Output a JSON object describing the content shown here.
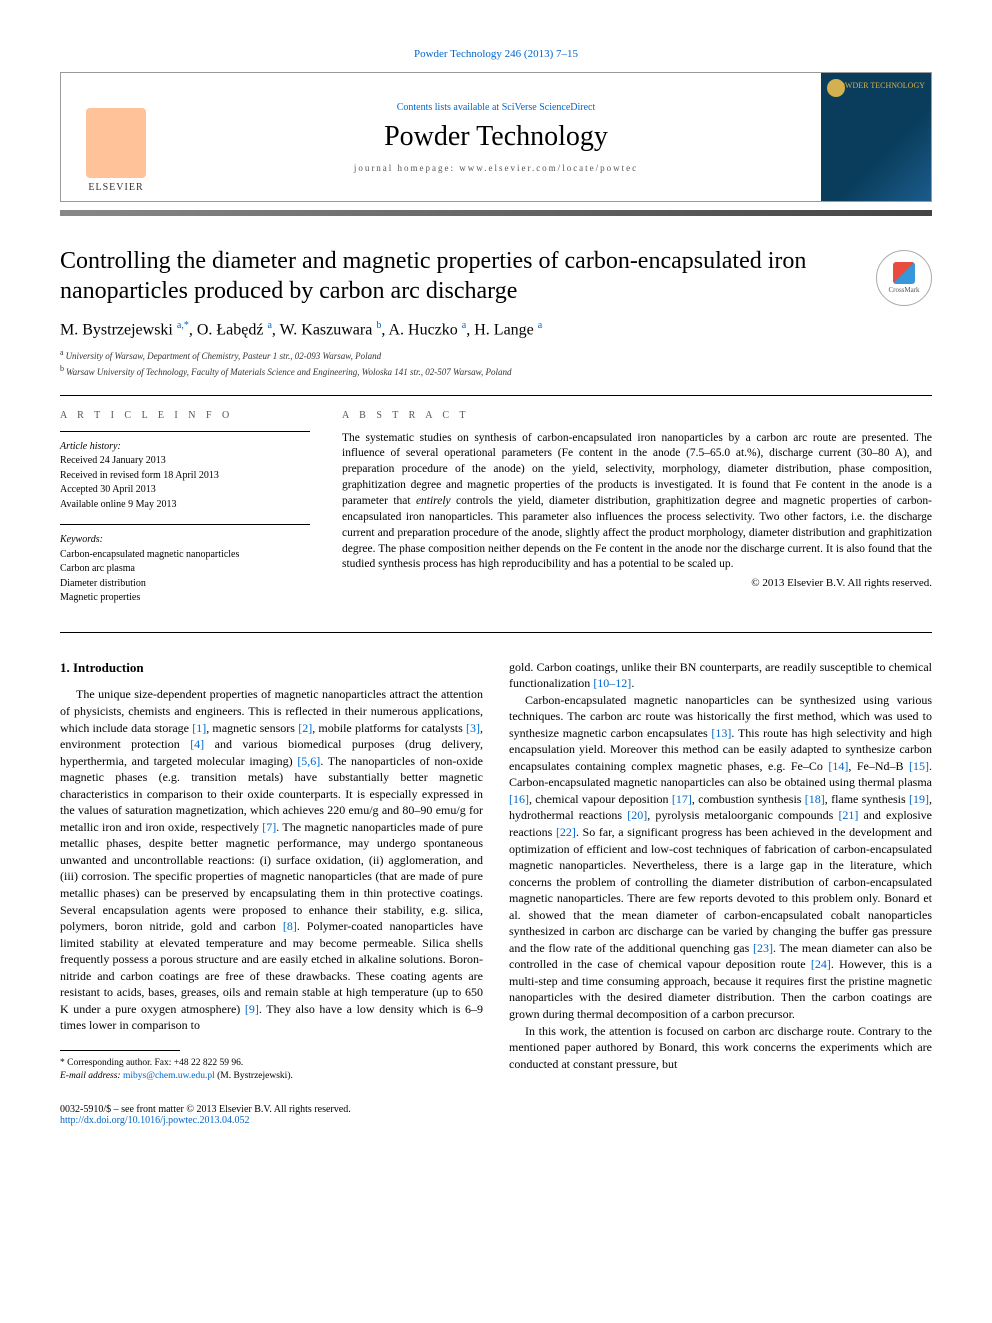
{
  "top_citation": "Powder Technology 246 (2013) 7–15",
  "masthead": {
    "contents_prefix": "Contents lists available at ",
    "contents_link": "SciVerse ScienceDirect",
    "journal": "Powder Technology",
    "homepage_label": "journal homepage: www.elsevier.com/locate/powtec",
    "publisher": "ELSEVIER",
    "cover_text": "POWDER TECHNOLOGY"
  },
  "crossmark_label": "CrossMark",
  "title": "Controlling the diameter and magnetic properties of carbon-encapsulated iron nanoparticles produced by carbon arc discharge",
  "authors_html": "M. Bystrzejewski |a,*|, O. Łabędź |a|, W. Kaszuwara |b|, A. Huczko |a|, H. Lange |a|",
  "affiliations": [
    {
      "sup": "a",
      "text": "University of Warsaw, Department of Chemistry, Pasteur 1 str., 02-093 Warsaw, Poland"
    },
    {
      "sup": "b",
      "text": "Warsaw University of Technology, Faculty of Materials Science and Engineering, Woloska 141 str., 02-507 Warsaw, Poland"
    }
  ],
  "article_info_heading": "A R T I C L E   I N F O",
  "abstract_heading": "A B S T R A C T",
  "history": {
    "label": "Article history:",
    "lines": [
      "Received 24 January 2013",
      "Received in revised form 18 April 2013",
      "Accepted 30 April 2013",
      "Available online 9 May 2013"
    ]
  },
  "keywords": {
    "label": "Keywords:",
    "items": [
      "Carbon-encapsulated magnetic nanoparticles",
      "Carbon arc plasma",
      "Diameter distribution",
      "Magnetic properties"
    ]
  },
  "abstract": "The systematic studies on synthesis of carbon-encapsulated iron nanoparticles by a carbon arc route are presented. The influence of several operational parameters (Fe content in the anode (7.5–65.0 at.%), discharge current (30–80 A), and preparation procedure of the anode) on the yield, selectivity, morphology, diameter distribution, phase composition, graphitization degree and magnetic properties of the products is investigated. It is found that Fe content in the anode is a parameter that entirely controls the yield, diameter distribution, graphitization degree and magnetic properties of carbon-encapsulated iron nanoparticles. This parameter also influences the process selectivity. Two other factors, i.e. the discharge current and preparation procedure of the anode, slightly affect the product morphology, diameter distribution and graphitization degree. The phase composition neither depends on the Fe content in the anode nor the discharge current. It is also found that the studied synthesis process has high reproducibility and has a potential to be scaled up.",
  "abstract_copyright": "© 2013 Elsevier B.V. All rights reserved.",
  "section1_heading": "1. Introduction",
  "col_left": "The unique size-dependent properties of magnetic nanoparticles attract the attention of physicists, chemists and engineers. This is reflected in their numerous applications, which include data storage [1], magnetic sensors [2], mobile platforms for catalysts [3], environment protection [4] and various biomedical purposes (drug delivery, hyperthermia, and targeted molecular imaging) [5,6]. The nanoparticles of non-oxide magnetic phases (e.g. transition metals) have substantially better magnetic characteristics in comparison to their oxide counterparts. It is especially expressed in the values of saturation magnetization, which achieves 220 emu/g and 80–90 emu/g for metallic iron and iron oxide, respectively [7]. The magnetic nanoparticles made of pure metallic phases, despite better magnetic performance, may undergo spontaneous unwanted and uncontrollable reactions: (i) surface oxidation, (ii) agglomeration, and (iii) corrosion. The specific properties of magnetic nanoparticles (that are made of pure metallic phases) can be preserved by encapsulating them in thin protective coatings. Several encapsulation agents were proposed to enhance their stability, e.g. silica, polymers, boron nitride, gold and carbon [8]. Polymer-coated nanoparticles have limited stability at elevated temperature and may become permeable. Silica shells frequently possess a porous structure and are easily etched in alkaline solutions. Boron-nitride and carbon coatings are free of these drawbacks. These coating agents are resistant to acids, bases, greases, oils and remain stable at high temperature (up to 650 K under a pure oxygen atmosphere) [9]. They also have a low density which is 6–9 times lower in comparison to",
  "col_right_p1": "gold. Carbon coatings, unlike their BN counterparts, are readily susceptible to chemical functionalization [10–12].",
  "col_right_p2": "Carbon-encapsulated magnetic nanoparticles can be synthesized using various techniques. The carbon arc route was historically the first method, which was used to synthesize magnetic carbon encapsulates [13]. This route has high selectivity and high encapsulation yield. Moreover this method can be easily adapted to synthesize carbon encapsulates containing complex magnetic phases, e.g. Fe–Co [14], Fe–Nd–B [15]. Carbon-encapsulated magnetic nanoparticles can also be obtained using thermal plasma [16], chemical vapour deposition [17], combustion synthesis [18], flame synthesis [19], hydrothermal reactions [20], pyrolysis metaloorganic compounds [21] and explosive reactions [22]. So far, a significant progress has been achieved in the development and optimization of efficient and low-cost techniques of fabrication of carbon-encapsulated magnetic nanoparticles. Nevertheless, there is a large gap in the literature, which concerns the problem of controlling the diameter distribution of carbon-encapsulated magnetic nanoparticles. There are few reports devoted to this problem only. Bonard et al. showed that the mean diameter of carbon-encapsulated cobalt nanoparticles synthesized in carbon arc discharge can be varied by changing the buffer gas pressure and the flow rate of the additional quenching gas [23]. The mean diameter can also be controlled in the case of chemical vapour deposition route [24]. However, this is a multi-step and time consuming approach, because it requires first the pristine magnetic nanoparticles with the desired diameter distribution. Then the carbon coatings are grown during thermal decomposition of a carbon precursor.",
  "col_right_p3": "In this work, the attention is focused on carbon arc discharge route. Contrary to the mentioned paper authored by Bonard, this work concerns the experiments which are conducted at constant pressure, but",
  "footnotes": {
    "corr": "* Corresponding author. Fax: +48 22 822 59 96.",
    "email_label": "E-mail address: ",
    "email": "mibys@chem.uw.edu.pl",
    "email_who": " (M. Bystrzejewski)."
  },
  "bottom": {
    "left1": "0032-5910/$ – see front matter © 2013 Elsevier B.V. All rights reserved.",
    "left2": "http://dx.doi.org/10.1016/j.powtec.2013.04.052"
  },
  "link_color": "#0066cc",
  "refs": [
    "[1]",
    "[2]",
    "[3]",
    "[4]",
    "[5,6]",
    "[7]",
    "[8]",
    "[9]",
    "[10–12]",
    "[13]",
    "[14]",
    "[15]",
    "[16]",
    "[17]",
    "[18]",
    "[19]",
    "[20]",
    "[21]",
    "[22]",
    "[23]",
    "[24]"
  ]
}
